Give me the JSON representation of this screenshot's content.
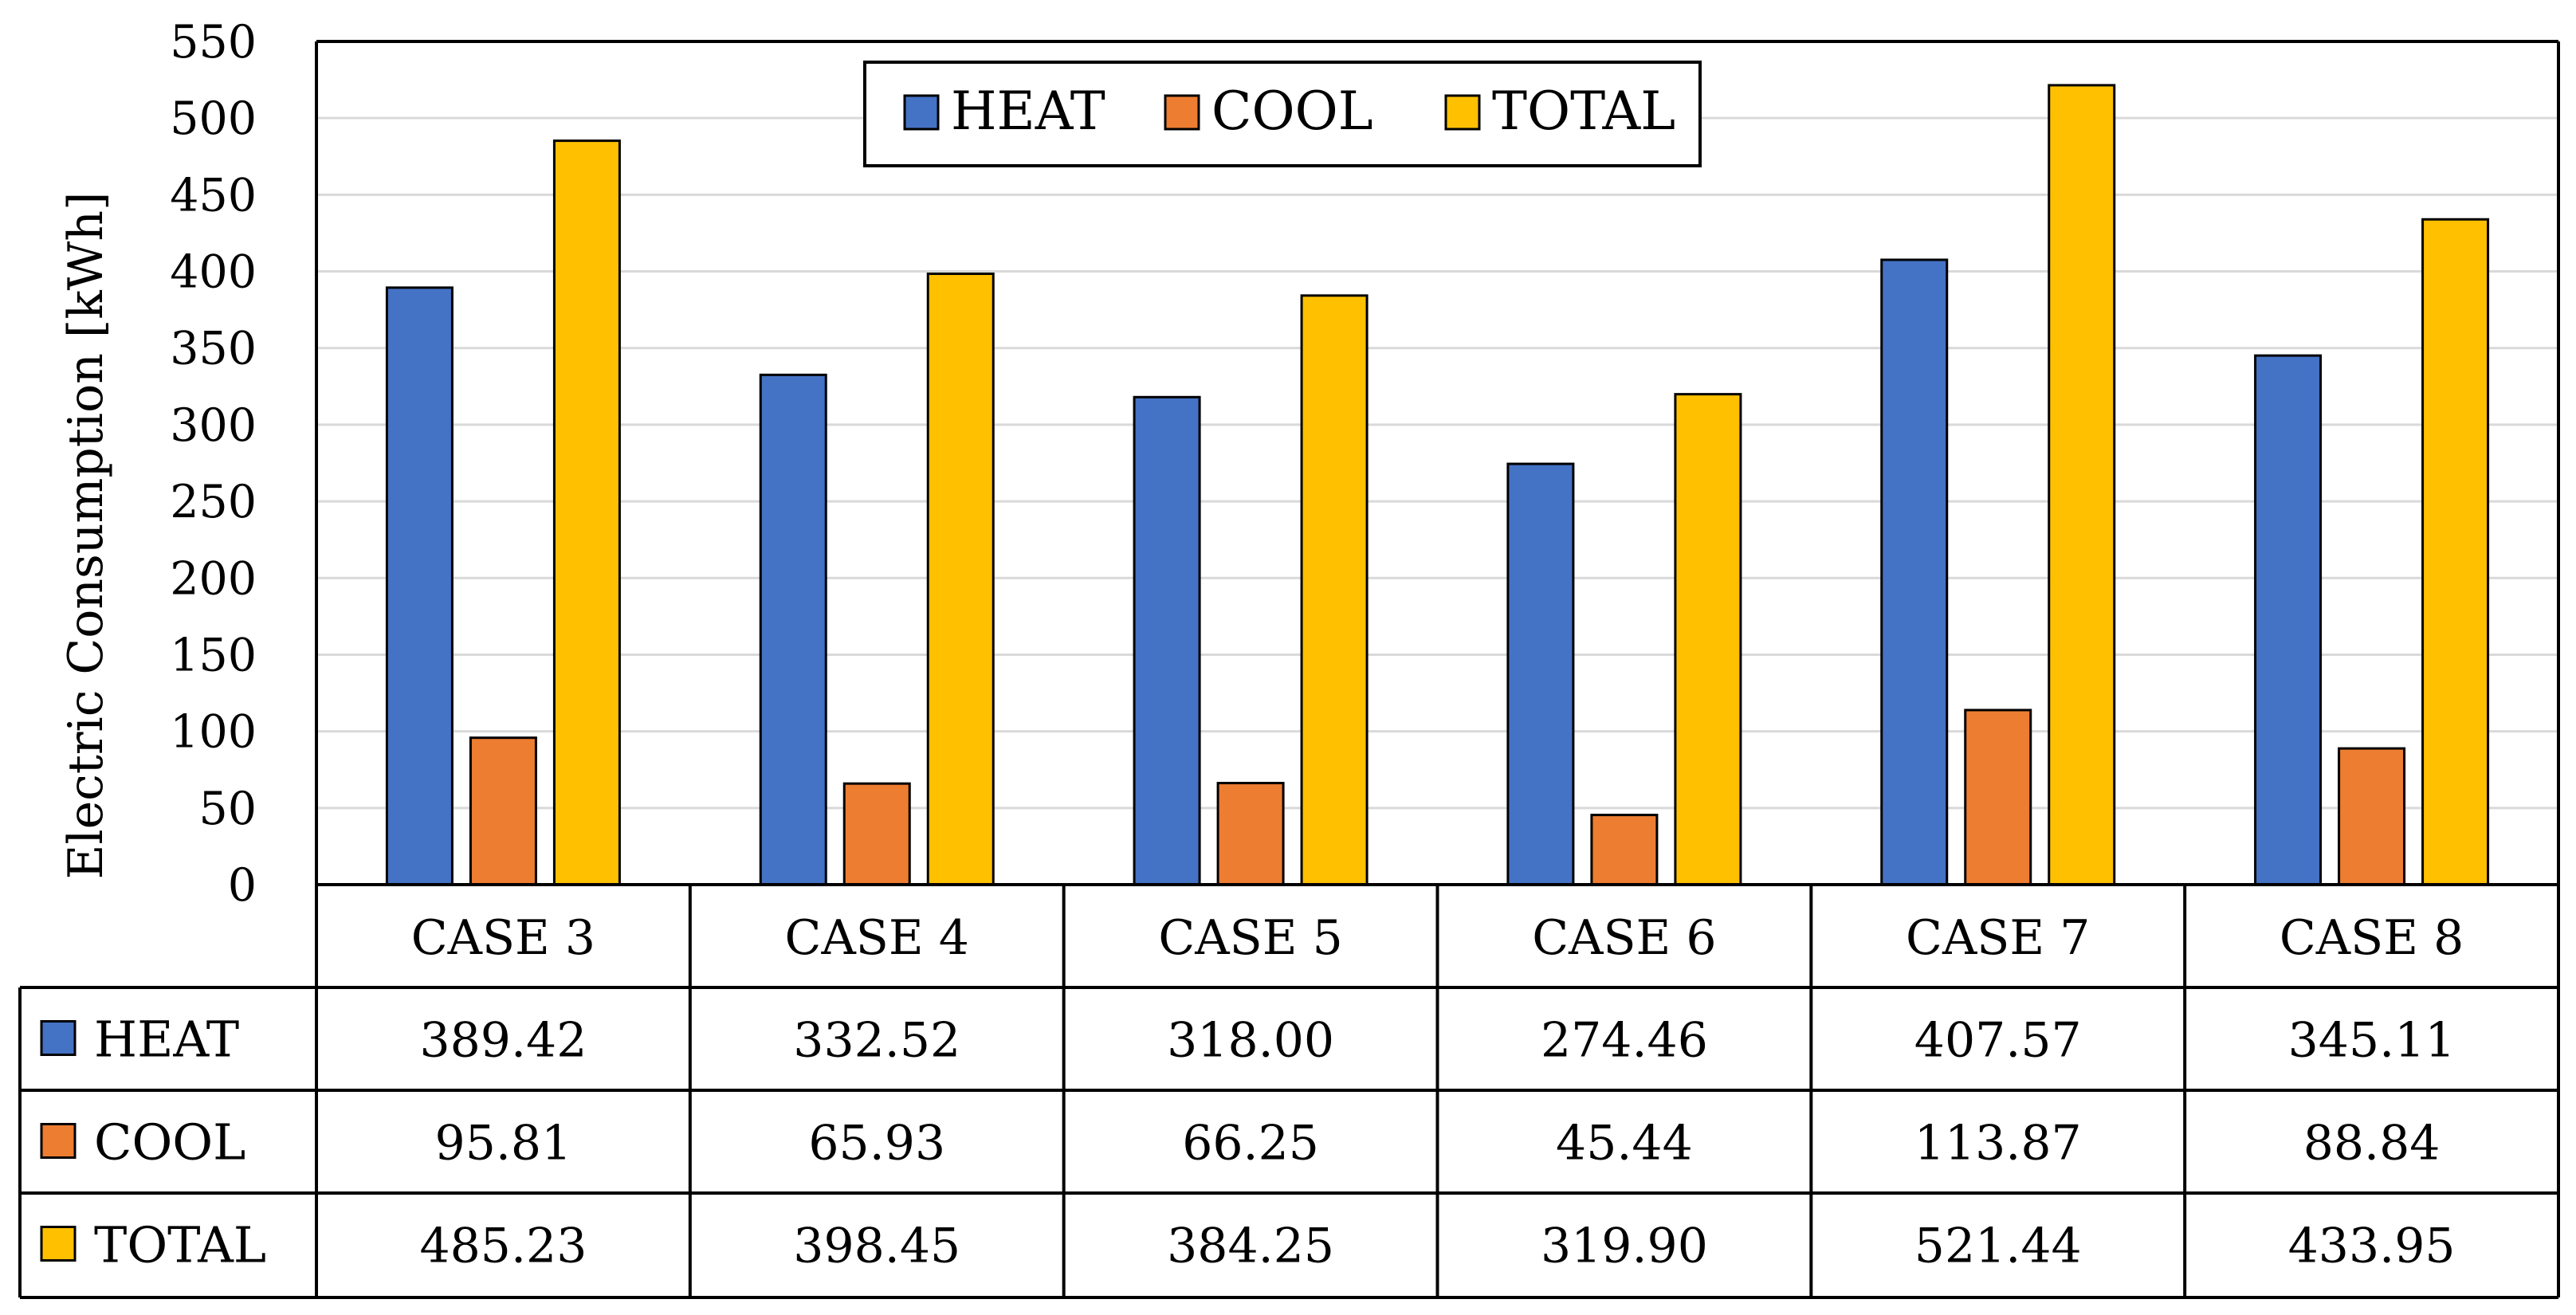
{
  "chart_data": {
    "type": "bar",
    "title": "",
    "ylabel": "Electric Consumption [kWh]",
    "xlabel": "",
    "ylim": [
      0,
      550
    ],
    "yticks": [
      0,
      50,
      100,
      150,
      200,
      250,
      300,
      350,
      400,
      450,
      500,
      550
    ],
    "grid": true,
    "legend_position": "top-center",
    "categories": [
      "CASE 3",
      "CASE 4",
      "CASE 5",
      "CASE 6",
      "CASE 7",
      "CASE 8"
    ],
    "series": [
      {
        "name": "HEAT",
        "color": "#4472C4",
        "values": [
          389.42,
          332.52,
          318.0,
          274.46,
          407.57,
          345.11
        ],
        "labels": [
          "389.42",
          "332.52",
          "318.00",
          "274.46",
          "407.57",
          "345.11"
        ]
      },
      {
        "name": "COOL",
        "color": "#ED7D31",
        "values": [
          95.81,
          65.93,
          66.25,
          45.44,
          113.87,
          88.84
        ],
        "labels": [
          "95.81",
          "65.93",
          "66.25",
          "45.44",
          "113.87",
          "88.84"
        ]
      },
      {
        "name": "TOTAL",
        "color": "#FFC000",
        "values": [
          485.23,
          398.45,
          384.25,
          319.9,
          521.44,
          433.95
        ],
        "labels": [
          "485.23",
          "398.45",
          "384.25",
          "319.90",
          "521.44",
          "433.95"
        ]
      }
    ],
    "data_table": true
  }
}
